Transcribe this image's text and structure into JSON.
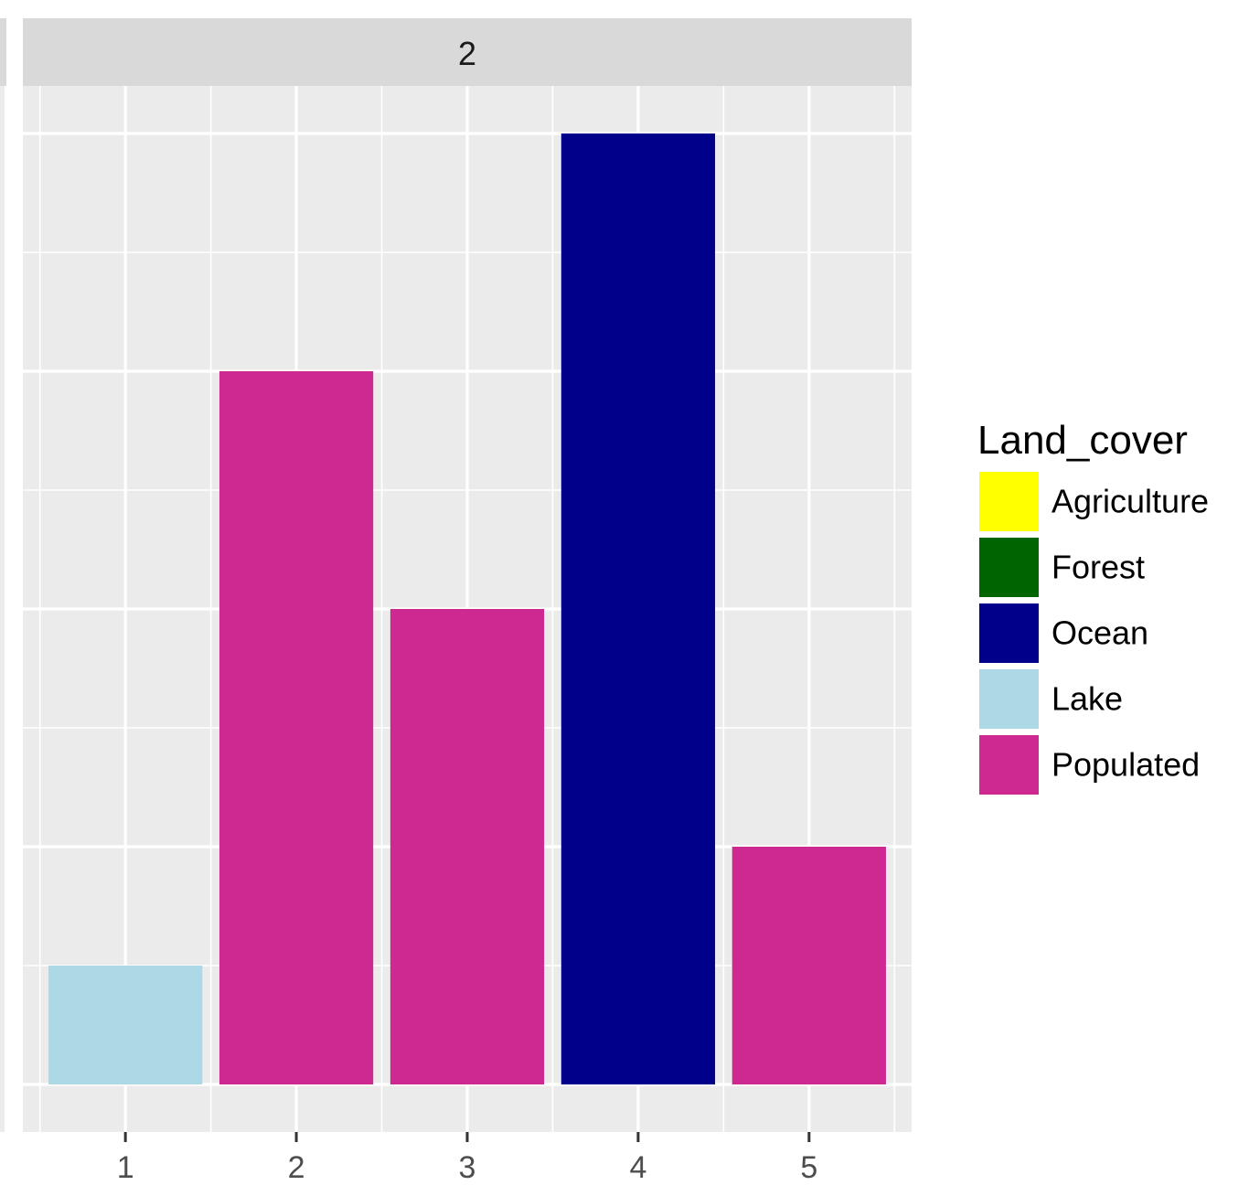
{
  "chart_data": {
    "type": "bar",
    "facet_label": "2",
    "categories": [
      "1",
      "2",
      "3",
      "4",
      "5"
    ],
    "values": [
      1,
      6,
      4,
      8,
      2
    ],
    "fill": [
      "Lake",
      "Populated",
      "Populated",
      "Ocean",
      "Populated"
    ],
    "ylim": [
      -0.4,
      8.4
    ],
    "y_grid_major": [
      0,
      2,
      4,
      6,
      8
    ],
    "y_grid_minor": [
      1,
      3,
      5,
      7
    ],
    "y_tick_labels_visible": false,
    "grid": true,
    "legend": {
      "title": "Land_cover",
      "position": "right",
      "items": [
        {
          "label": "Agriculture",
          "color": "#ffff00"
        },
        {
          "label": "Forest",
          "color": "#006400"
        },
        {
          "label": "Ocean",
          "color": "#00008b"
        },
        {
          "label": "Lake",
          "color": "#add8e6"
        },
        {
          "label": "Populated",
          "color": "#cd2990"
        }
      ]
    }
  }
}
